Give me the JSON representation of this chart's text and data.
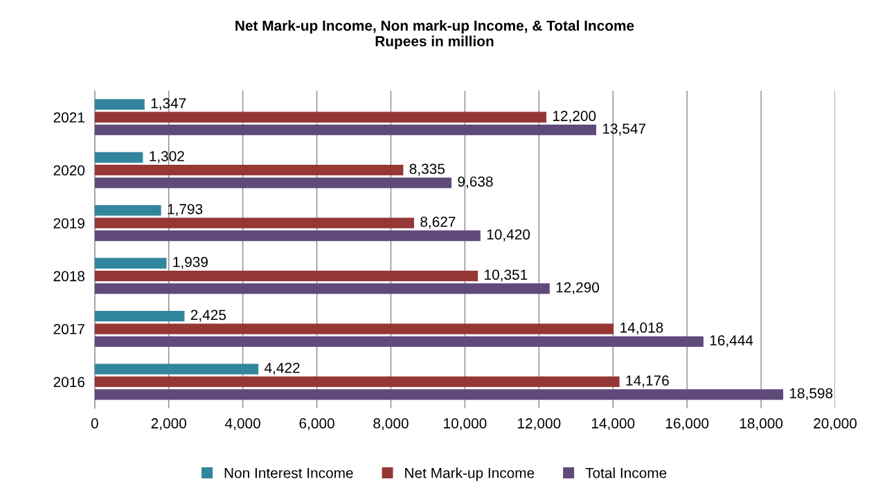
{
  "chart_data": {
    "type": "bar",
    "orientation": "horizontal",
    "title": "Net Mark-up Income, Non mark-up Income, & Total Income\nRupees in million",
    "categories": [
      "2021",
      "2020",
      "2019",
      "2018",
      "2017",
      "2016"
    ],
    "series": [
      {
        "name": "Non Interest Income",
        "color": "#31859c",
        "values": [
          1347,
          1302,
          1793,
          1939,
          2425,
          4422
        ],
        "value_labels": [
          "1,347",
          "1,302",
          "1,793",
          "1,939",
          "2,425",
          "4,422"
        ]
      },
      {
        "name": "Net Mark-up Income",
        "color": "#953735",
        "values": [
          12200,
          8335,
          8627,
          10351,
          14018,
          14176
        ],
        "value_labels": [
          "12,200",
          "8,335",
          "8,627",
          "10,351",
          "14,018",
          "14,176"
        ]
      },
      {
        "name": "Total Income",
        "color": "#604a7b",
        "values": [
          13547,
          9638,
          10420,
          12290,
          16444,
          18598
        ],
        "value_labels": [
          "13,547",
          "9,638",
          "10,420",
          "12,290",
          "16,444",
          "18,598"
        ]
      }
    ],
    "xlim": [
      0,
      20000
    ],
    "xticks": [
      0,
      {
        "value": 2000,
        "label": "2,000"
      },
      {
        "value": 4000,
        "label": "4,000"
      },
      {
        "value": 6000,
        "label": "6,000"
      },
      {
        "value": 8000,
        "label": "8,000"
      },
      {
        "value": 10000,
        "label": "10,000"
      },
      {
        "value": 12000,
        "label": "12,000"
      },
      {
        "value": 14000,
        "label": "14,000"
      },
      {
        "value": 16000,
        "label": "16,000"
      },
      {
        "value": 18000,
        "label": "18,000"
      },
      {
        "value": 20000,
        "label": "20,000"
      }
    ],
    "grid": "x",
    "legend": "bottom"
  }
}
